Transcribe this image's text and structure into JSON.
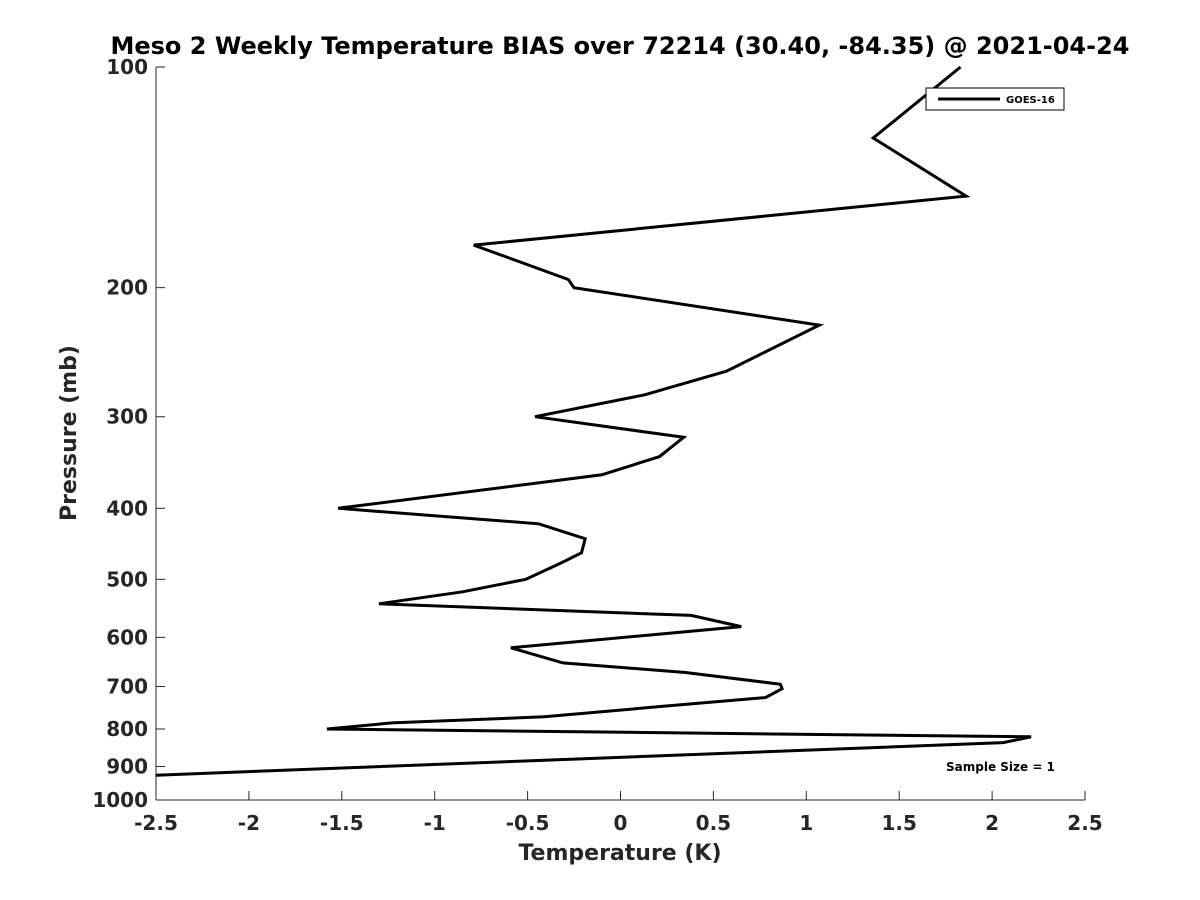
{
  "chart_data": {
    "type": "line",
    "title": "Meso 2 Weekly Temperature BIAS over 72214 (30.40, -84.35) @ 2021-04-24",
    "xlabel": "Temperature (K)",
    "ylabel": "Pressure (mb)",
    "xlim": [
      -2.5,
      2.5
    ],
    "ylim": [
      100,
      1000
    ],
    "y_scale": "log",
    "y_reversed": true,
    "x_ticks": [
      -2.5,
      -2,
      -1.5,
      -1,
      -0.5,
      0,
      0.5,
      1,
      1.5,
      2,
      2.5
    ],
    "x_tick_labels": [
      "-2.5",
      "-2",
      "-1.5",
      "-1",
      "-0.5",
      "0",
      "0.5",
      "1",
      "1.5",
      "2",
      "2.5"
    ],
    "y_ticks": [
      100,
      200,
      300,
      400,
      500,
      600,
      700,
      800,
      900,
      1000
    ],
    "y_tick_labels": [
      "100",
      "200",
      "300",
      "400",
      "500",
      "600",
      "700",
      "800",
      "900",
      "1000"
    ],
    "grid": false,
    "legend_position": "top-right",
    "series": [
      {
        "name": "GOES-16",
        "color": "#000000",
        "points": [
          {
            "x": 1.83,
            "p": 100
          },
          {
            "x": 1.36,
            "p": 125
          },
          {
            "x": 1.86,
            "p": 150
          },
          {
            "x": -0.79,
            "p": 175
          },
          {
            "x": -0.28,
            "p": 195
          },
          {
            "x": -0.25,
            "p": 200
          },
          {
            "x": 1.07,
            "p": 225
          },
          {
            "x": 0.57,
            "p": 260
          },
          {
            "x": 0.13,
            "p": 280
          },
          {
            "x": -0.46,
            "p": 300
          },
          {
            "x": 0.34,
            "p": 320
          },
          {
            "x": 0.21,
            "p": 340
          },
          {
            "x": -0.1,
            "p": 360
          },
          {
            "x": -1.52,
            "p": 400
          },
          {
            "x": -0.44,
            "p": 420
          },
          {
            "x": -0.19,
            "p": 440
          },
          {
            "x": -0.21,
            "p": 460
          },
          {
            "x": -0.32,
            "p": 475
          },
          {
            "x": -0.51,
            "p": 500
          },
          {
            "x": -0.85,
            "p": 520
          },
          {
            "x": -1.3,
            "p": 540
          },
          {
            "x": 0.38,
            "p": 560
          },
          {
            "x": 0.65,
            "p": 580
          },
          {
            "x": -0.59,
            "p": 620
          },
          {
            "x": -0.31,
            "p": 650
          },
          {
            "x": 0.35,
            "p": 670
          },
          {
            "x": 0.86,
            "p": 695
          },
          {
            "x": 0.87,
            "p": 705
          },
          {
            "x": 0.78,
            "p": 725
          },
          {
            "x": 0.23,
            "p": 745
          },
          {
            "x": -0.41,
            "p": 770
          },
          {
            "x": -1.23,
            "p": 785
          },
          {
            "x": -1.58,
            "p": 800
          },
          {
            "x": 2.21,
            "p": 820
          },
          {
            "x": 2.06,
            "p": 835
          },
          {
            "x": -2.5,
            "p": 925
          }
        ]
      }
    ],
    "annotation": "Sample Size = 1"
  }
}
